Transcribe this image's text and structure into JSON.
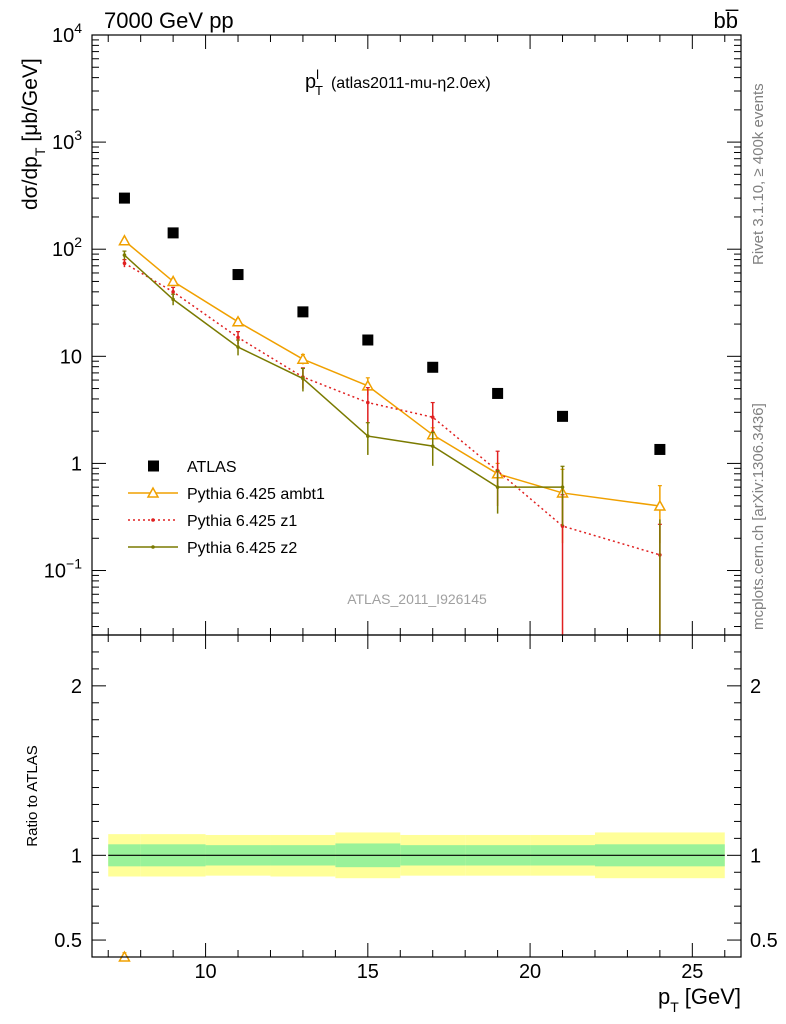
{
  "header": {
    "energy_label": "7000 GeV pp",
    "process_label": "bb̅",
    "rivet_label": "Rivet 3.1.10, ≥ 400k events",
    "mcplots_label": "mcplots.cern.ch [arXiv:1306.3436]"
  },
  "chart_data": [
    {
      "type": "scatter",
      "title_main": "p",
      "title_sup": "l",
      "title_sub": "T",
      "title_rest": "(atlas2011-mu-η2.0ex)",
      "ylabel": "dσ/dp",
      "ylabel_sub": "T",
      "ylabel_unit": "[μb/GeV]",
      "watermark": "ATLAS_2011_I926145",
      "y_scale": "log",
      "ylim": [
        0.025,
        10000
      ],
      "xlim": [
        6.5,
        26.5
      ],
      "y_ticks": [
        {
          "value": 10000,
          "base": "10",
          "exp": "4"
        },
        {
          "value": 1000,
          "base": "10",
          "exp": "3"
        },
        {
          "value": 100,
          "base": "10",
          "exp": "2"
        },
        {
          "value": 10,
          "base": "10",
          "exp": ""
        },
        {
          "value": 1,
          "base": "1",
          "exp": ""
        },
        {
          "value": 0.1,
          "base": "10",
          "exp": "−1"
        }
      ],
      "legend_position": "bottom-left",
      "series": [
        {
          "name": "ATLAS",
          "color": "#000000",
          "marker": "square",
          "x": [
            7.5,
            9,
            11,
            13,
            15,
            17,
            19,
            21,
            24
          ],
          "y": [
            300,
            142,
            58,
            26,
            14.2,
            7.9,
            4.5,
            2.75,
            1.35
          ],
          "yerr": [
            0,
            0,
            0,
            0,
            0,
            0,
            0,
            0,
            0
          ]
        },
        {
          "name": "Pythia 6.425 ambt1",
          "color": "#f0a000",
          "marker": "triangle",
          "line": "solid",
          "x": [
            7.5,
            9,
            11,
            13,
            15,
            17,
            19,
            21,
            24
          ],
          "y": [
            120,
            50,
            21,
            9.4,
            5.3,
            1.85,
            0.8,
            0.53,
            0.4
          ],
          "yerr": [
            5,
            3,
            1.5,
            1.0,
            1.0,
            0.3,
            0.2,
            0.35,
            0.22
          ]
        },
        {
          "name": "Pythia 6.425 z1",
          "color": "#e02020",
          "marker": "dot",
          "line": "dotted",
          "x": [
            7.5,
            9,
            11,
            13,
            15,
            17,
            19,
            21,
            24
          ],
          "y": [
            74,
            40,
            15,
            6.4,
            3.7,
            2.7,
            0.85,
            0.26,
            0.14
          ],
          "yerr": [
            6,
            4,
            2,
            1.4,
            1.4,
            1.0,
            0.45,
            0.25,
            0.13
          ]
        },
        {
          "name": "Pythia 6.425 z2",
          "color": "#7a7a00",
          "marker": "dot",
          "line": "solid",
          "x": [
            7.5,
            9,
            11,
            13,
            15,
            17,
            19,
            21,
            24
          ],
          "y": [
            88,
            34,
            12.2,
            6.2,
            1.8,
            1.45,
            0.6,
            0.6,
            0
          ],
          "yerr": [
            8,
            4,
            2,
            1.5,
            0.6,
            0.5,
            0.26,
            0.34,
            0
          ]
        }
      ]
    },
    {
      "type": "line",
      "ylabel": "Ratio to ATLAS",
      "xlabel": "p",
      "xlabel_sub": "T",
      "xlabel_unit": "[GeV]",
      "ylim": [
        0.4,
        2.3
      ],
      "xlim": [
        6.5,
        26.5
      ],
      "x_ticks": [
        10,
        15,
        20,
        25
      ],
      "y_ticks": [
        {
          "value": 0.5,
          "label": "0.5"
        },
        {
          "value": 1,
          "label": "1"
        },
        {
          "value": 2,
          "label": "2"
        }
      ],
      "reference_line": 1,
      "band_colors": {
        "inner": "#99f299",
        "outer": "#ffff99"
      },
      "bins": [
        {
          "lo": 7,
          "hi": 8,
          "inner": [
            0.935,
            1.065
          ],
          "outer": [
            0.875,
            1.125
          ]
        },
        {
          "lo": 8,
          "hi": 10,
          "inner": [
            0.935,
            1.065
          ],
          "outer": [
            0.875,
            1.125
          ]
        },
        {
          "lo": 10,
          "hi": 12,
          "inner": [
            0.94,
            1.06
          ],
          "outer": [
            0.88,
            1.12
          ]
        },
        {
          "lo": 12,
          "hi": 14,
          "inner": [
            0.94,
            1.06
          ],
          "outer": [
            0.875,
            1.12
          ]
        },
        {
          "lo": 14,
          "hi": 16,
          "inner": [
            0.93,
            1.07
          ],
          "outer": [
            0.865,
            1.135
          ]
        },
        {
          "lo": 16,
          "hi": 18,
          "inner": [
            0.94,
            1.06
          ],
          "outer": [
            0.88,
            1.12
          ]
        },
        {
          "lo": 18,
          "hi": 20,
          "inner": [
            0.94,
            1.06
          ],
          "outer": [
            0.88,
            1.12
          ]
        },
        {
          "lo": 20,
          "hi": 22,
          "inner": [
            0.94,
            1.06
          ],
          "outer": [
            0.88,
            1.12
          ]
        },
        {
          "lo": 22,
          "hi": 26,
          "inner": [
            0.935,
            1.065
          ],
          "outer": [
            0.865,
            1.135
          ]
        }
      ],
      "ratio_points": [
        {
          "series": "Pythia 6.425 ambt1",
          "x": 7.5,
          "y": 0.4,
          "yerr": 0.025,
          "color": "#f0a000",
          "marker": "triangle"
        }
      ]
    }
  ]
}
